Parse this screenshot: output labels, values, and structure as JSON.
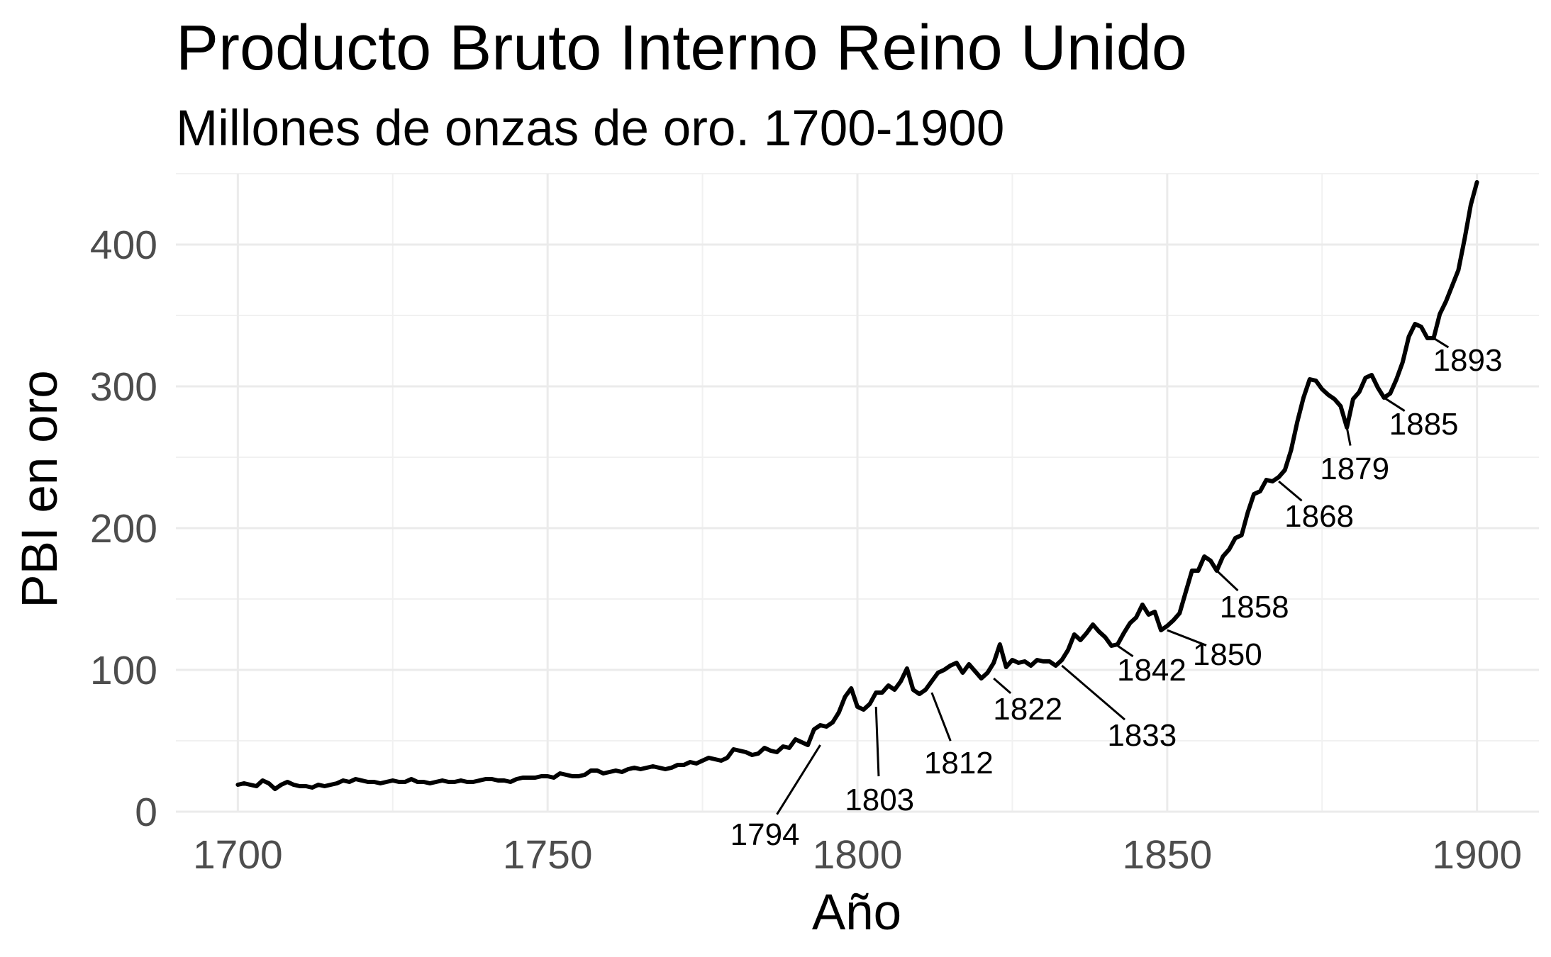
{
  "chart_data": {
    "type": "line",
    "title": "Producto Bruto Interno Reino Unido",
    "subtitle": "Millones de onzas de oro. 1700-1900",
    "xlabel": "Año",
    "ylabel": "PBI en oro",
    "xlim": [
      1690,
      1910
    ],
    "ylim": [
      0,
      450
    ],
    "x_ticks": [
      "1700",
      "1750",
      "1800",
      "1850",
      "1900"
    ],
    "y_ticks": [
      "0",
      "100",
      "200",
      "300",
      "400"
    ],
    "grid": true,
    "line_color": "#000000",
    "series": [
      {
        "x": [
          1700,
          1701,
          1702,
          1703,
          1704,
          1705,
          1706,
          1707,
          1708,
          1709,
          1710,
          1711,
          1712,
          1713,
          1714,
          1715,
          1716,
          1717,
          1718,
          1719,
          1720,
          1721,
          1722,
          1723,
          1724,
          1725,
          1726,
          1727,
          1728,
          1729,
          1730,
          1731,
          1732,
          1733,
          1734,
          1735,
          1736,
          1737,
          1738,
          1739,
          1740,
          1741,
          1742,
          1743,
          1744,
          1745,
          1746,
          1747,
          1748,
          1749,
          1750,
          1751,
          1752,
          1753,
          1754,
          1755,
          1756,
          1757,
          1758,
          1759,
          1760,
          1761,
          1762,
          1763,
          1764,
          1765,
          1766,
          1767,
          1768,
          1769,
          1770,
          1771,
          1772,
          1773,
          1774,
          1775,
          1776,
          1777,
          1778,
          1779,
          1780,
          1781,
          1782,
          1783,
          1784,
          1785,
          1786,
          1787,
          1788,
          1789,
          1790,
          1791,
          1792,
          1793,
          1794,
          1795,
          1796,
          1797,
          1798,
          1799,
          1800,
          1801,
          1802,
          1803,
          1804,
          1805,
          1806,
          1807,
          1808,
          1809,
          1810,
          1811,
          1812,
          1813,
          1814,
          1815,
          1816,
          1817,
          1818,
          1819,
          1820,
          1821,
          1822,
          1823,
          1824,
          1825,
          1826,
          1827,
          1828,
          1829,
          1830,
          1831,
          1832,
          1833,
          1834,
          1835,
          1836,
          1837,
          1838,
          1839,
          1840,
          1841,
          1842,
          1843,
          1844,
          1845,
          1846,
          1847,
          1848,
          1849,
          1850,
          1851,
          1852,
          1853,
          1854,
          1855,
          1856,
          1857,
          1858,
          1859,
          1860,
          1861,
          1862,
          1863,
          1864,
          1865,
          1866,
          1867,
          1868,
          1869,
          1870,
          1871,
          1872,
          1873,
          1874,
          1875,
          1876,
          1877,
          1878,
          1879,
          1880,
          1881,
          1882,
          1883,
          1884,
          1885,
          1886,
          1887,
          1888,
          1889,
          1890,
          1891,
          1892,
          1893,
          1894,
          1895,
          1896,
          1897,
          1898,
          1899,
          1900
        ],
        "y": [
          19,
          20,
          19,
          18,
          22,
          20,
          16,
          19,
          21,
          19,
          18,
          18,
          17,
          19,
          18,
          19,
          20,
          22,
          21,
          23,
          22,
          21,
          21,
          20,
          21,
          22,
          21,
          21,
          23,
          21,
          21,
          20,
          21,
          22,
          21,
          21,
          22,
          21,
          21,
          22,
          23,
          23,
          22,
          22,
          21,
          23,
          24,
          24,
          24,
          25,
          25,
          24,
          27,
          26,
          25,
          25,
          26,
          29,
          29,
          27,
          28,
          29,
          28,
          30,
          31,
          30,
          31,
          32,
          31,
          30,
          31,
          33,
          33,
          35,
          34,
          36,
          38,
          37,
          36,
          38,
          44,
          43,
          42,
          40,
          41,
          45,
          43,
          42,
          46,
          45,
          51,
          49,
          47,
          58,
          61,
          60,
          63,
          70,
          81,
          87,
          74,
          72,
          76,
          84,
          84,
          89,
          86,
          92,
          101,
          86,
          83,
          86,
          92,
          98,
          100,
          103,
          105,
          98,
          104,
          99,
          94,
          98,
          105,
          118,
          102,
          107,
          105,
          106,
          103,
          107,
          106,
          106,
          103,
          107,
          114,
          125,
          121,
          126,
          132,
          127,
          123,
          117,
          118,
          126,
          133,
          137,
          146,
          139,
          141,
          128,
          131,
          135,
          140,
          155,
          170,
          170,
          180,
          177,
          170,
          180,
          185,
          193,
          195,
          211,
          224,
          226,
          234,
          233,
          236,
          241,
          255,
          275,
          292,
          305,
          304,
          298,
          294,
          291,
          286,
          271,
          291,
          296,
          306,
          308,
          299,
          292,
          295,
          305,
          317,
          335,
          344,
          342,
          334,
          334,
          351,
          360,
          371,
          382,
          404,
          428,
          444
        ]
      }
    ],
    "annotations": [
      {
        "label": "1794",
        "x": 1794,
        "y": 47
      },
      {
        "label": "1803",
        "x": 1803,
        "y": 74
      },
      {
        "label": "1812",
        "x": 1812,
        "y": 84
      },
      {
        "label": "1822",
        "x": 1822,
        "y": 94
      },
      {
        "label": "1833",
        "x": 1833,
        "y": 103
      },
      {
        "label": "1842",
        "x": 1842,
        "y": 117
      },
      {
        "label": "1850",
        "x": 1850,
        "y": 128
      },
      {
        "label": "1858",
        "x": 1858,
        "y": 170
      },
      {
        "label": "1868",
        "x": 1868,
        "y": 233
      },
      {
        "label": "1879",
        "x": 1879,
        "y": 271
      },
      {
        "label": "1885",
        "x": 1885,
        "y": 292
      },
      {
        "label": "1893",
        "x": 1893,
        "y": 334
      }
    ]
  }
}
